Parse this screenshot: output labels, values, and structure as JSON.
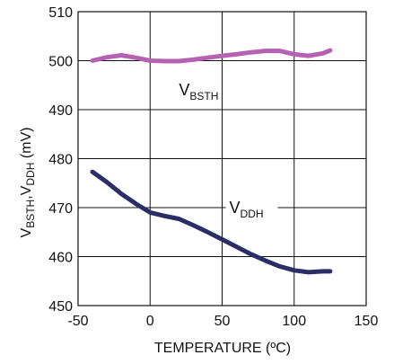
{
  "chart_data": {
    "type": "line",
    "xlabel": "TEMPERATURE (ºC)",
    "ylabel": {
      "main_1": "V",
      "sub_1": "BSTH",
      "sep": ",V",
      "sub_2": "DDH",
      "tail": " (mV)"
    },
    "xlim": [
      -50,
      150
    ],
    "ylim": [
      450,
      510
    ],
    "x_ticks": [
      -50,
      0,
      50,
      100,
      150
    ],
    "y_ticks": [
      450,
      460,
      470,
      480,
      490,
      500,
      510
    ],
    "grid": true,
    "series": [
      {
        "name": "V_BSTH",
        "label_main": "V",
        "label_sub": "BSTH",
        "color": "#b562b2",
        "x": [
          -40,
          -30,
          -20,
          -10,
          0,
          10,
          20,
          30,
          40,
          50,
          60,
          70,
          80,
          90,
          100,
          110,
          120,
          125
        ],
        "y": [
          500.0,
          500.7,
          501.1,
          500.6,
          500.0,
          499.9,
          499.9,
          500.2,
          500.6,
          501.0,
          501.3,
          501.7,
          502.0,
          502.0,
          501.3,
          501.0,
          501.5,
          502.1
        ]
      },
      {
        "name": "V_DDH",
        "label_main": "V",
        "label_sub": "DDH",
        "color": "#2c2c66",
        "x": [
          -40,
          -30,
          -20,
          -10,
          0,
          10,
          20,
          30,
          40,
          50,
          60,
          70,
          80,
          90,
          100,
          110,
          120,
          125
        ],
        "y": [
          477.3,
          475.2,
          472.8,
          470.8,
          469.0,
          468.3,
          467.7,
          466.4,
          465.0,
          463.5,
          462.0,
          460.5,
          459.2,
          458.0,
          457.2,
          456.8,
          457.0,
          457.0
        ]
      }
    ]
  }
}
